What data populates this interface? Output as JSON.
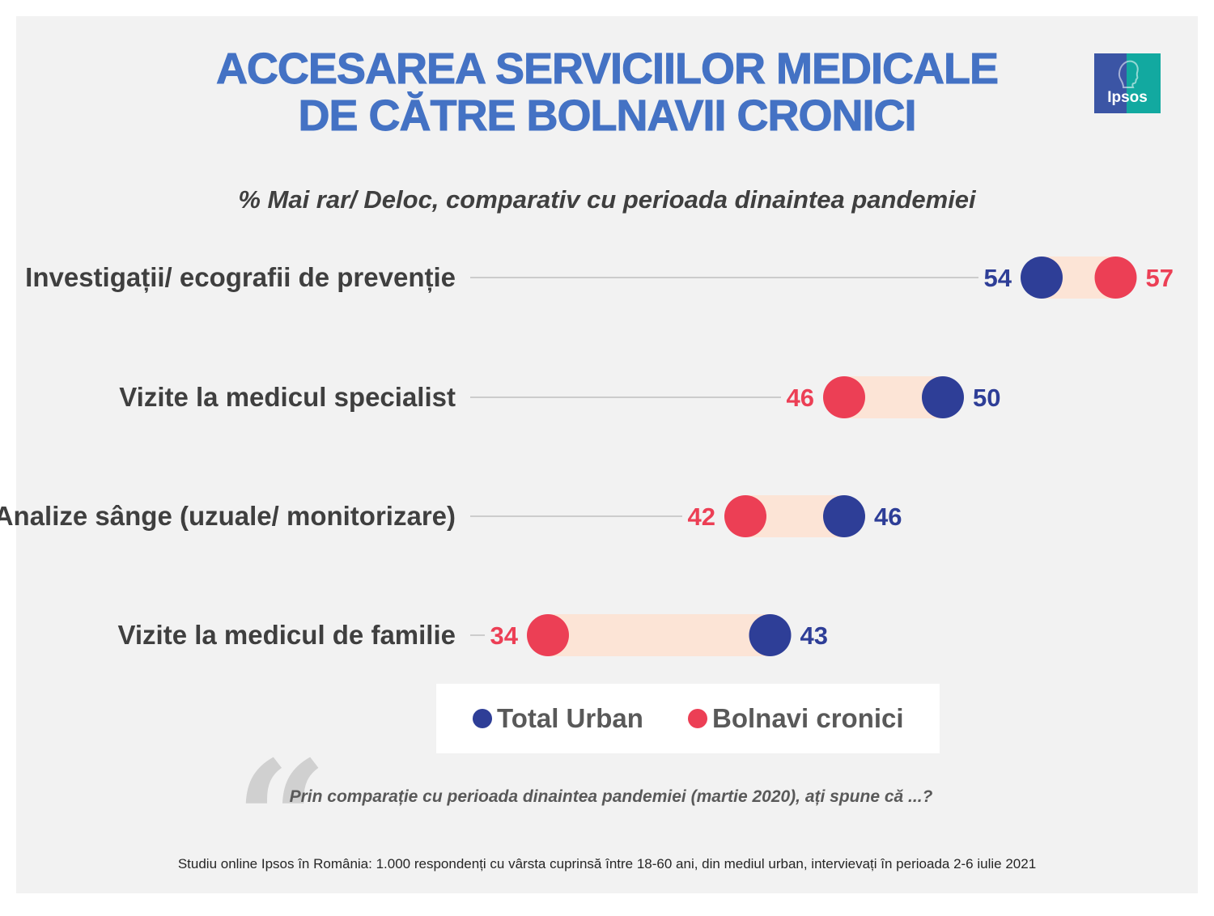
{
  "title_lines": [
    "ACCESAREA SERVICIILOR MEDICALE",
    "DE CĂTRE BOLNAVII CRONICI"
  ],
  "subtitle": "% Mai rar/ Deloc, comparativ cu perioada dinaintea pandemiei",
  "logo_text": "Ipsos",
  "question": "Prin comparație cu perioada dinaintea pandemiei (martie 2020), ați spune că ...?",
  "footnote": "Studiu online Ipsos în România: 1.000 respondenți cu vârsta cuprinsă între 18-60 ani, din mediul urban, intervievați în perioada 2-6 iulie 2021",
  "colors": {
    "total_urban": "#2e3e97",
    "bolnavi_cronici": "#ec3f55",
    "range_band": "#fce4d6",
    "title": "#4472c4",
    "leader_line": "#bfbfbf"
  },
  "chart_data": {
    "type": "dumbbell",
    "categories": [
      "Investigații/ ecografii de prevenție",
      "Vizite la medicul specialist",
      "Analize sânge (uzuale/ monitorizare)",
      "Vizite la medicul de familie"
    ],
    "series": [
      {
        "name": "Total Urban",
        "values": [
          54,
          50,
          46,
          43
        ]
      },
      {
        "name": "Bolnavi cronici",
        "values": [
          57,
          46,
          42,
          34
        ]
      }
    ],
    "legend_position": "bottom",
    "grid": false
  }
}
